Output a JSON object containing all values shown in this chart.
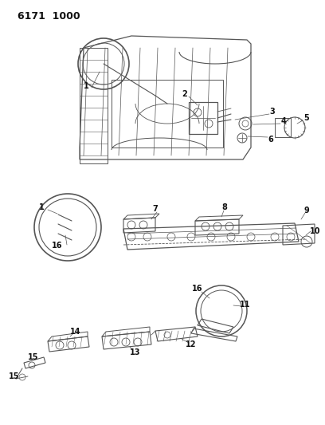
{
  "title": "6171  1000",
  "bg_color": "#ffffff",
  "line_color": "#555555",
  "label_color": "#111111",
  "title_fontsize": 9,
  "label_fontsize": 7,
  "fig_width": 4.08,
  "fig_height": 5.33,
  "dpi": 100
}
